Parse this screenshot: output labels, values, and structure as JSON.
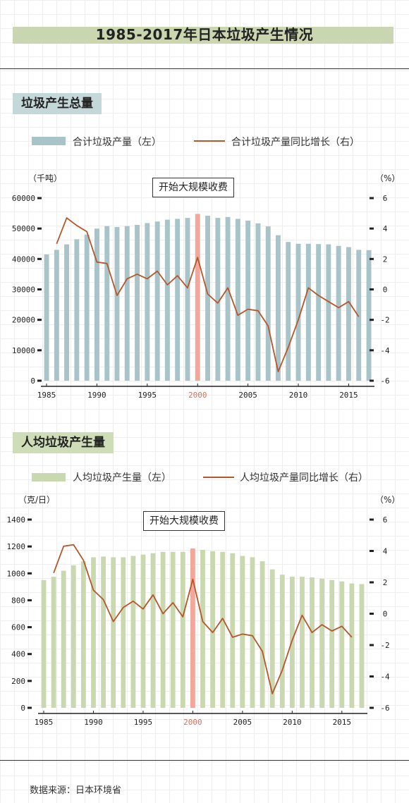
{
  "title": "1985-2017年日本垃圾产生情况",
  "colors": {
    "teal": "#a9c4c9",
    "green": "#cad8b0",
    "line": "#b5562b",
    "highlight": "#f2a79a"
  },
  "source": "数据来源：日本环境省",
  "chart_data": [
    {
      "type": "bar",
      "title": "垃圾产生总量",
      "legend_bar": "合计垃圾产量（左）",
      "legend_line": "合计垃圾产量同比增长（右）",
      "annotation": "开始大规模收费",
      "left_unit": "（千吨）",
      "right_unit": "（%）",
      "ylim_left": [
        0,
        60000
      ],
      "ylim_right": [
        -6,
        6
      ],
      "yticks_left": [
        "0",
        "10000",
        "20000",
        "30000",
        "40000",
        "50000",
        "60000"
      ],
      "yticks_right": [
        "-6",
        "-4",
        "-2",
        "0",
        "2",
        "4",
        "6"
      ],
      "xticks": [
        "1985",
        "1990",
        "1995",
        "2000",
        "2005",
        "2010",
        "2015"
      ],
      "x": [
        1985,
        1986,
        1987,
        1988,
        1989,
        1990,
        1991,
        1992,
        1993,
        1994,
        1995,
        1996,
        1997,
        1998,
        1999,
        2000,
        2001,
        2002,
        2003,
        2004,
        2005,
        2006,
        2007,
        2008,
        2009,
        2010,
        2011,
        2012,
        2013,
        2014,
        2015,
        2016,
        2017
      ],
      "bars": [
        41500,
        43000,
        44800,
        46500,
        48000,
        50000,
        50800,
        50500,
        50800,
        51200,
        51800,
        52300,
        52900,
        53200,
        53500,
        54800,
        54200,
        53500,
        53800,
        53200,
        52600,
        51700,
        50700,
        47800,
        45600,
        45000,
        45000,
        44900,
        44800,
        44300,
        43900,
        43000,
        42900
      ],
      "highlight_year": 2000,
      "line_x": [
        1986,
        1987,
        1988,
        1989,
        1990,
        1991,
        1992,
        1993,
        1994,
        1995,
        1996,
        1997,
        1998,
        1999,
        2000,
        2001,
        2002,
        2003,
        2004,
        2005,
        2006,
        2007,
        2008,
        2009,
        2010,
        2011,
        2012,
        2013,
        2014,
        2015,
        2016
      ],
      "line": [
        3.0,
        4.7,
        4.2,
        3.8,
        1.8,
        1.7,
        -0.4,
        0.7,
        1.0,
        0.7,
        1.2,
        0.3,
        0.9,
        0.1,
        2.1,
        -0.3,
        -0.9,
        0.1,
        -1.7,
        -1.3,
        -1.4,
        -2.4,
        -5.4,
        -3.8,
        -2.0,
        0.1,
        -0.4,
        -0.8,
        -1.2,
        -0.8,
        -1.8
      ]
    },
    {
      "type": "bar",
      "title": "人均垃圾产生量",
      "legend_bar": "人均垃圾产生量（左）",
      "legend_line": "人均垃圾产量同比增长（右）",
      "annotation": "开始大规模收费",
      "left_unit": "（克/日）",
      "right_unit": "（%）",
      "ylim_left": [
        0,
        1400
      ],
      "ylim_right": [
        -6,
        6
      ],
      "yticks_left": [
        "0",
        "200",
        "400",
        "600",
        "800",
        "1000",
        "1200",
        "1400"
      ],
      "yticks_right": [
        "-6",
        "-4",
        "-2",
        "0",
        "2",
        "4",
        "6"
      ],
      "xticks": [
        "1985",
        "1990",
        "1995",
        "2000",
        "2005",
        "2010",
        "2015"
      ],
      "x": [
        1985,
        1986,
        1987,
        1988,
        1989,
        1990,
        1991,
        1992,
        1993,
        1994,
        1995,
        1996,
        1997,
        1998,
        1999,
        2000,
        2001,
        2002,
        2003,
        2004,
        2005,
        2006,
        2007,
        2008,
        2009,
        2010,
        2011,
        2012,
        2013,
        2014,
        2015,
        2016,
        2017
      ],
      "bars": [
        950,
        975,
        1020,
        1060,
        1090,
        1120,
        1125,
        1120,
        1120,
        1130,
        1140,
        1150,
        1160,
        1160,
        1160,
        1185,
        1175,
        1165,
        1160,
        1150,
        1130,
        1120,
        1090,
        1030,
        990,
        975,
        975,
        970,
        960,
        950,
        940,
        925,
        920
      ],
      "highlight_year": 2000,
      "line_x": [
        1986,
        1987,
        1988,
        1989,
        1990,
        1991,
        1992,
        1993,
        1994,
        1995,
        1996,
        1997,
        1998,
        1999,
        2000,
        2001,
        2002,
        2003,
        2004,
        2005,
        2006,
        2007,
        2008,
        2009,
        2010,
        2011,
        2012,
        2013,
        2014,
        2015,
        2016
      ],
      "line": [
        2.6,
        4.3,
        4.4,
        3.4,
        1.5,
        0.9,
        -0.5,
        0.4,
        0.8,
        0.3,
        1.2,
        0.0,
        0.7,
        -0.2,
        2.2,
        -0.5,
        -1.2,
        -0.3,
        -1.5,
        -1.3,
        -1.4,
        -2.4,
        -5.1,
        -3.6,
        -1.7,
        -0.1,
        -1.2,
        -0.7,
        -1.1,
        -0.8,
        -1.5
      ]
    }
  ]
}
